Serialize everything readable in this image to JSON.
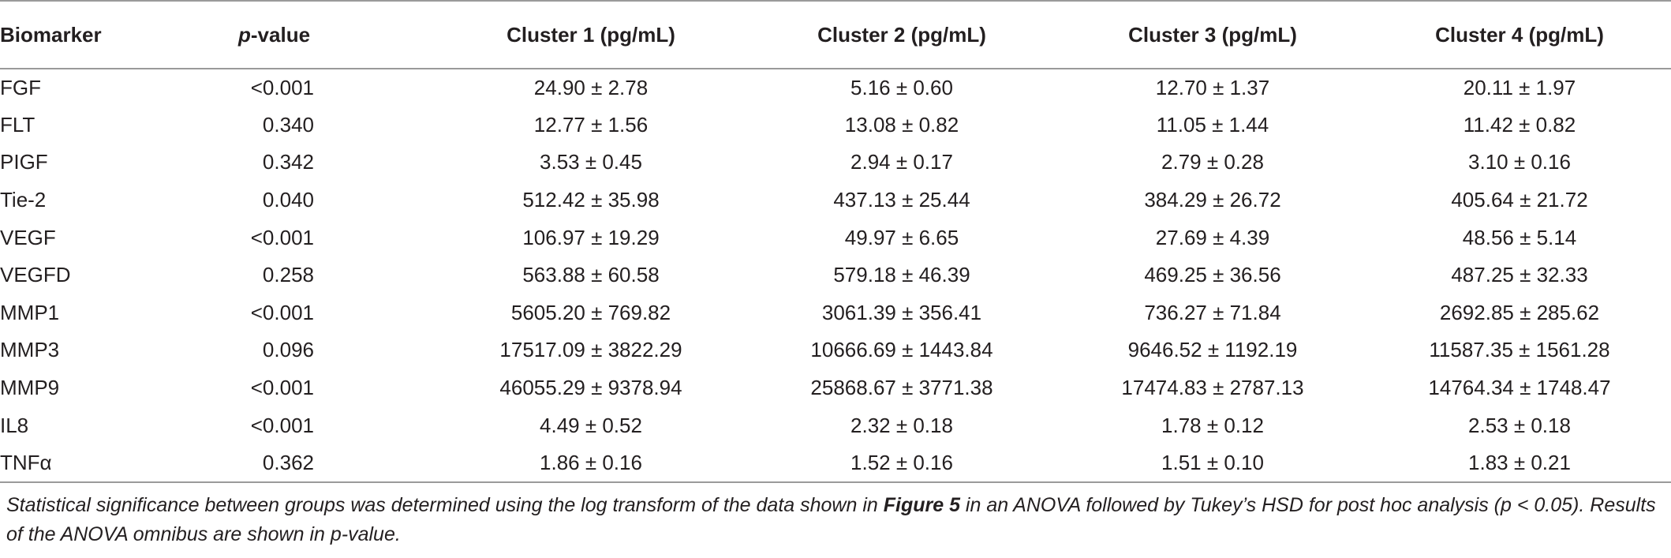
{
  "table": {
    "headers": {
      "biomarker": "Biomarker",
      "p_italic": "p",
      "p_rest": "-value",
      "cluster1": "Cluster 1 (pg/mL)",
      "cluster2": "Cluster 2 (pg/mL)",
      "cluster3": "Cluster 3 (pg/mL)",
      "cluster4": "Cluster 4 (pg/mL)"
    },
    "rows": [
      {
        "biomarker": "FGF",
        "p": "<0.001",
        "c1": "24.90 ± 2.78",
        "c2": "5.16 ± 0.60",
        "c3": "12.70 ± 1.37",
        "c4": "20.11 ± 1.97"
      },
      {
        "biomarker": "FLT",
        "p": "0.340",
        "c1": "12.77 ± 1.56",
        "c2": "13.08 ± 0.82",
        "c3": "11.05 ± 1.44",
        "c4": "11.42 ± 0.82"
      },
      {
        "biomarker": "PIGF",
        "p": "0.342",
        "c1": "3.53 ± 0.45",
        "c2": "2.94 ± 0.17",
        "c3": "2.79 ± 0.28",
        "c4": "3.10 ± 0.16"
      },
      {
        "biomarker": "Tie-2",
        "p": "0.040",
        "c1": "512.42 ± 35.98",
        "c2": "437.13 ± 25.44",
        "c3": "384.29 ± 26.72",
        "c4": "405.64 ± 21.72"
      },
      {
        "biomarker": "VEGF",
        "p": "<0.001",
        "c1": "106.97 ± 19.29",
        "c2": "49.97 ± 6.65",
        "c3": "27.69 ± 4.39",
        "c4": "48.56 ± 5.14"
      },
      {
        "biomarker": "VEGFD",
        "p": "0.258",
        "c1": "563.88 ± 60.58",
        "c2": "579.18 ± 46.39",
        "c3": "469.25 ± 36.56",
        "c4": "487.25 ± 32.33"
      },
      {
        "biomarker": "MMP1",
        "p": "<0.001",
        "c1": "5605.20 ± 769.82",
        "c2": "3061.39 ± 356.41",
        "c3": "736.27 ± 71.84",
        "c4": "2692.85 ± 285.62"
      },
      {
        "biomarker": "MMP3",
        "p": "0.096",
        "c1": "17517.09 ± 3822.29",
        "c2": "10666.69 ± 1443.84",
        "c3": "9646.52 ± 1192.19",
        "c4": "11587.35 ± 1561.28"
      },
      {
        "biomarker": "MMP9",
        "p": "<0.001",
        "c1": "46055.29 ± 9378.94",
        "c2": "25868.67 ± 3771.38",
        "c3": "17474.83 ± 2787.13",
        "c4": "14764.34 ± 1748.47"
      },
      {
        "biomarker": "IL8",
        "p": "<0.001",
        "c1": "4.49 ± 0.52",
        "c2": "2.32 ± 0.18",
        "c3": "1.78 ± 0.12",
        "c4": "2.53 ± 0.18"
      },
      {
        "biomarker": "TNFα",
        "p": "0.362",
        "c1": "1.86 ± 0.16",
        "c2": "1.52 ± 0.16",
        "c3": "1.51 ± 0.10",
        "c4": "1.83 ± 0.21"
      }
    ]
  },
  "footnote": {
    "part1": "Statistical significance between groups was determined using the log transform of the data shown in ",
    "figure_ref": "Figure 5",
    "part2": " in an ANOVA followed by Tukey’s HSD for post hoc analysis (p < 0.05). Results of the ANOVA omnibus are shown in p-value."
  }
}
